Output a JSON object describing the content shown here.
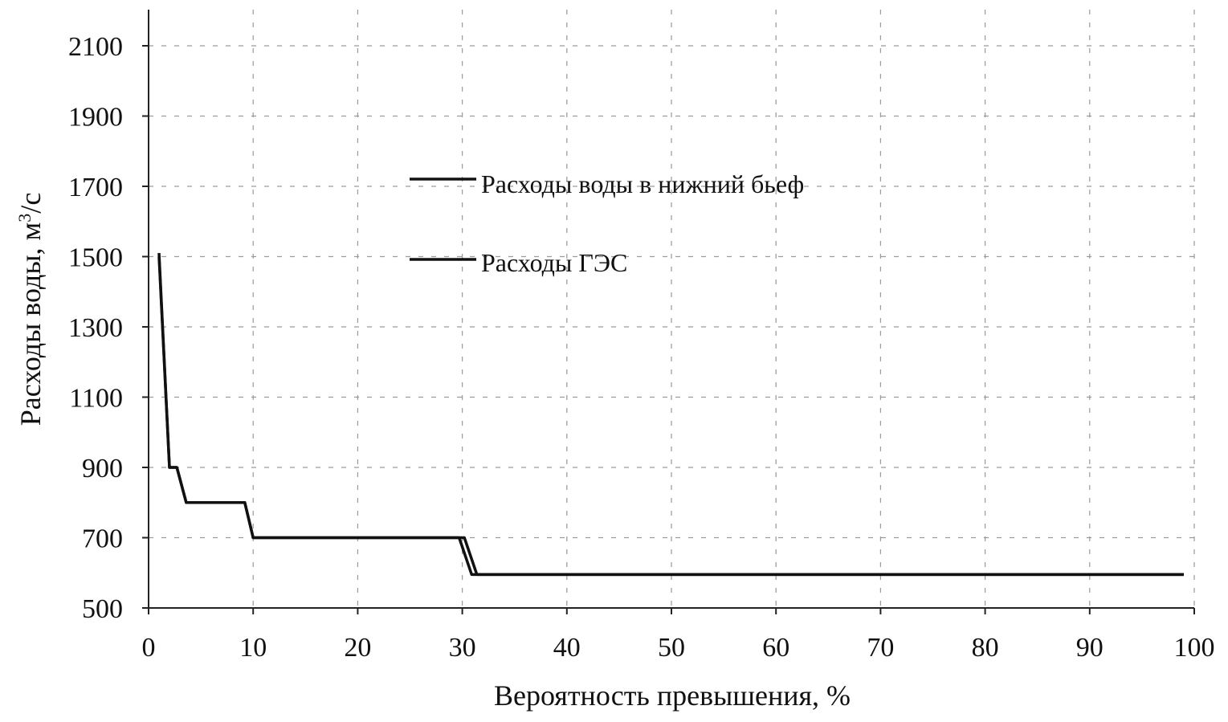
{
  "chart_data": {
    "type": "line",
    "title": "",
    "xlabel": "Вероятность превышения, %",
    "ylabel_main": "Расходы воды, м",
    "ylabel_sup": "3",
    "ylabel_tail": "/с",
    "xlim": [
      0,
      100
    ],
    "ylim": [
      500,
      2100
    ],
    "xticks": [
      0,
      10,
      20,
      30,
      40,
      50,
      60,
      70,
      80,
      90,
      100
    ],
    "yticks": [
      500,
      700,
      900,
      1100,
      1300,
      1500,
      1700,
      1900,
      2100
    ],
    "grid": true,
    "legend_position": "center",
    "series": [
      {
        "name": "Расходы воды в нижний бьеф",
        "x": [
          1,
          2,
          2.7,
          3.6,
          9.2,
          10,
          30.2,
          31.4,
          99
        ],
        "y": [
          1510,
          900,
          900,
          800,
          800,
          700,
          700,
          595,
          595
        ]
      },
      {
        "name": "Расходы ГЭС",
        "x": [
          1,
          2,
          2.7,
          3.6,
          9.2,
          10,
          29.7,
          30.9,
          99
        ],
        "y": [
          1500,
          900,
          900,
          800,
          800,
          700,
          700,
          595,
          595
        ]
      }
    ]
  },
  "colors": {
    "line": "#111111",
    "grid": "#9a9a9a"
  }
}
